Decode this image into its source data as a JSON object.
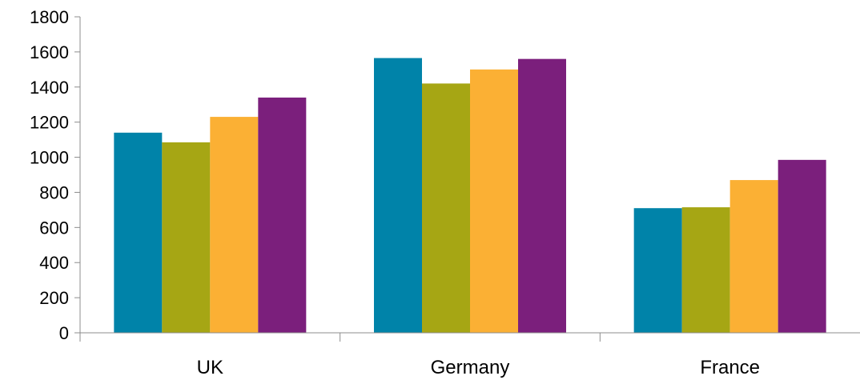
{
  "chart_data": {
    "type": "bar",
    "categories": [
      "UK",
      "Germany",
      "France"
    ],
    "series": [
      {
        "values": [
          1140,
          1565,
          710
        ],
        "color": "#0083a9"
      },
      {
        "values": [
          1085,
          1420,
          715
        ],
        "color": "#a6a614"
      },
      {
        "values": [
          1230,
          1500,
          870
        ],
        "color": "#fbb034"
      },
      {
        "values": [
          1340,
          1560,
          985
        ],
        "color": "#7b1f7c"
      }
    ],
    "y_ticks": [
      0,
      200,
      400,
      600,
      800,
      1000,
      1200,
      1400,
      1600,
      1800
    ],
    "ylim": [
      0,
      1800
    ],
    "title": "",
    "xlabel": "",
    "ylabel": "",
    "grid": false,
    "legend": "none"
  }
}
